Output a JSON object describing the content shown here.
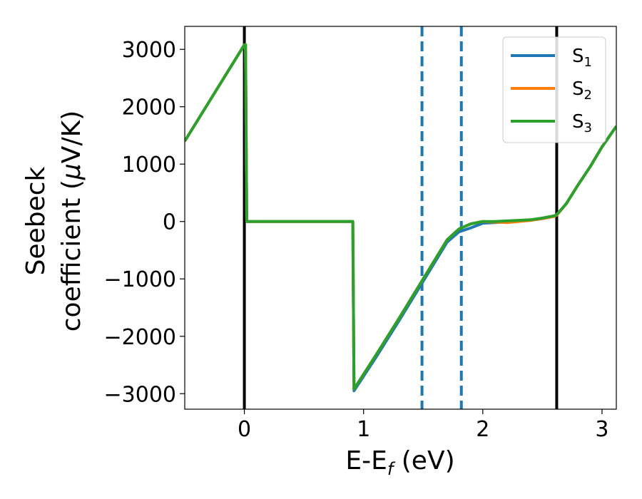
{
  "chart_data": {
    "type": "line",
    "xlabel": "E-E",
    "xlabel_sub": "f",
    "xlabel_unit": " (eV)",
    "ylabel_line1": "Seebeck",
    "ylabel_line2": "coefficient  (",
    "ylabel_mu": "μ",
    "ylabel_unit": "V/K)",
    "xlim": [
      -0.5,
      3.12
    ],
    "ylim": [
      -3270,
      3400
    ],
    "xticks": [
      0,
      1,
      2,
      3
    ],
    "xtick_labels": [
      "0",
      "1",
      "2",
      "3"
    ],
    "yticks": [
      3000,
      2000,
      1000,
      0,
      -1000,
      -2000,
      -3000
    ],
    "ytick_labels": [
      "3000",
      "2000",
      "1000",
      "0",
      "−1000",
      "−2000",
      "−3000"
    ],
    "legend_position": "top-right",
    "legend": [
      {
        "base": "S",
        "sub": "1"
      },
      {
        "base": "S",
        "sub": "2"
      },
      {
        "base": "S",
        "sub": "3"
      }
    ],
    "vertical_lines": [
      {
        "x": 0.0,
        "style": "solid",
        "color": "#000000"
      },
      {
        "x": 2.62,
        "style": "solid",
        "color": "#000000"
      },
      {
        "x": 1.49,
        "style": "dashed",
        "color": "#1f77b4"
      },
      {
        "x": 1.82,
        "style": "dashed",
        "color": "#1f77b4"
      }
    ],
    "series": [
      {
        "name": "S1",
        "color": "#1f77b4",
        "x": [
          -0.5,
          0.0,
          0.01,
          0.02,
          0.91,
          0.92,
          1.1,
          1.3,
          1.5,
          1.7,
          1.8,
          1.9,
          2.0,
          2.1,
          2.2,
          2.3,
          2.4,
          2.5,
          2.6,
          2.62,
          2.7,
          2.8,
          2.9,
          3.0,
          3.12
        ],
        "y": [
          1400,
          3080,
          3080,
          0,
          0,
          -2950,
          -2380,
          -1720,
          -1040,
          -360,
          -180,
          -110,
          -30,
          -20,
          -10,
          10,
          20,
          50,
          90,
          110,
          310,
          640,
          950,
          1300,
          1660
        ]
      },
      {
        "name": "S2",
        "color": "#ff7f0e",
        "x": [
          -0.5,
          0.0,
          0.01,
          0.02,
          0.91,
          0.92,
          1.1,
          1.3,
          1.5,
          1.7,
          1.8,
          1.9,
          2.0,
          2.1,
          2.2,
          2.3,
          2.4,
          2.5,
          2.6,
          2.62,
          2.7,
          2.8,
          2.9,
          3.0,
          3.12
        ],
        "y": [
          1400,
          3080,
          3080,
          0,
          0,
          -2920,
          -2340,
          -1680,
          -1000,
          -320,
          -130,
          -40,
          0,
          -10,
          -20,
          0,
          20,
          50,
          90,
          110,
          310,
          640,
          950,
          1300,
          1660
        ]
      },
      {
        "name": "S3",
        "color": "#2ca02c",
        "x": [
          -0.5,
          0.0,
          0.01,
          0.02,
          0.91,
          0.92,
          1.1,
          1.3,
          1.5,
          1.7,
          1.8,
          1.9,
          2.0,
          2.1,
          2.2,
          2.3,
          2.4,
          2.5,
          2.6,
          2.62,
          2.7,
          2.8,
          2.9,
          3.0,
          3.12
        ],
        "y": [
          1400,
          3080,
          3080,
          0,
          0,
          -2920,
          -2340,
          -1680,
          -1000,
          -320,
          -130,
          -40,
          0,
          0,
          10,
          20,
          30,
          60,
          100,
          120,
          310,
          640,
          950,
          1300,
          1660
        ]
      }
    ]
  }
}
